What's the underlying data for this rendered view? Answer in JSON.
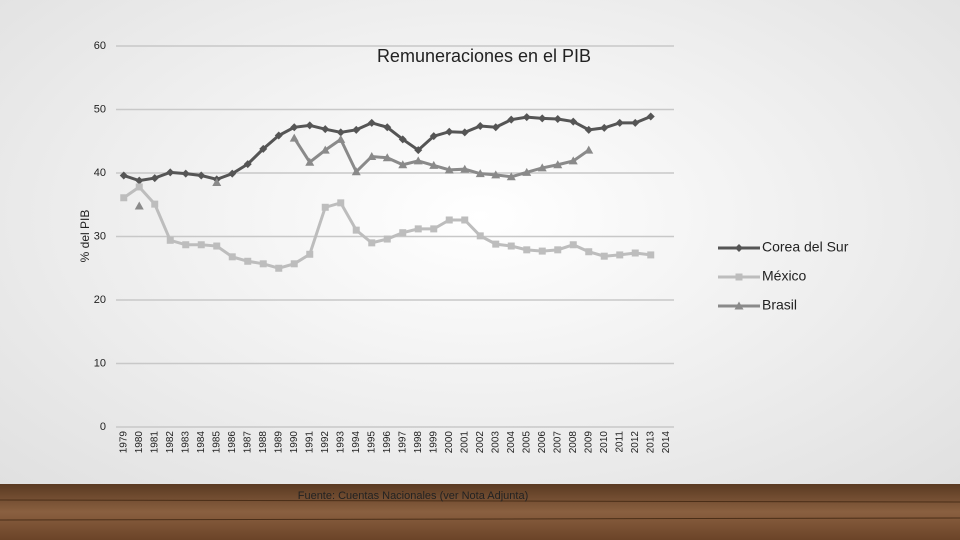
{
  "chart_data": {
    "type": "line",
    "title": "Remuneraciones en el PIB",
    "y_label": "% del PIB",
    "source": "Fuente: Cuentas Nacionales (ver Nota Adjunta)",
    "categories": [
      "1979",
      "1980",
      "1981",
      "1982",
      "1983",
      "1984",
      "1985",
      "1986",
      "1987",
      "1988",
      "1989",
      "1990",
      "1991",
      "1992",
      "1993",
      "1994",
      "1995",
      "1996",
      "1997",
      "1998",
      "1999",
      "2000",
      "2001",
      "2002",
      "2003",
      "2004",
      "2005",
      "2006",
      "2007",
      "2008",
      "2009",
      "2010",
      "2011",
      "2012",
      "2013",
      "2014"
    ],
    "series": [
      {
        "name": "Corea del Sur",
        "color": "#555555",
        "marker": "diamond",
        "values": [
          39.6,
          38.8,
          39.2,
          40.1,
          39.9,
          39.6,
          39.0,
          39.9,
          41.4,
          43.8,
          45.9,
          47.2,
          47.5,
          46.9,
          46.4,
          46.8,
          47.9,
          47.2,
          45.3,
          43.6,
          45.8,
          46.5,
          46.4,
          47.4,
          47.2,
          48.4,
          48.8,
          48.6,
          48.5,
          48.1,
          46.8,
          47.1,
          47.9,
          47.9,
          48.9,
          null
        ]
      },
      {
        "name": "México",
        "color": "#bdbdbd",
        "marker": "square",
        "values": [
          36.1,
          37.8,
          35.1,
          29.4,
          28.7,
          28.7,
          28.5,
          26.8,
          26.1,
          25.7,
          25.0,
          25.7,
          27.2,
          34.6,
          35.3,
          31.0,
          29.0,
          29.6,
          30.6,
          31.2,
          31.2,
          32.6,
          32.6,
          30.1,
          28.8,
          28.5,
          27.9,
          27.7,
          27.9,
          28.7,
          27.6,
          26.9,
          27.1,
          27.4,
          27.1,
          null
        ]
      },
      {
        "name": "Brasil",
        "color": "#8a8a8a",
        "marker": "triangle",
        "values": [
          null,
          34.8,
          null,
          null,
          null,
          null,
          38.5,
          null,
          null,
          null,
          null,
          45.5,
          41.7,
          43.6,
          45.3,
          40.2,
          42.6,
          42.4,
          41.3,
          41.9,
          41.2,
          40.5,
          40.6,
          39.9,
          39.7,
          39.4,
          40.1,
          40.8,
          41.3,
          41.9,
          43.6,
          null,
          null,
          null,
          null,
          null
        ]
      }
    ],
    "ylim": [
      0,
      60
    ],
    "yticks": [
      0,
      10,
      20,
      30,
      40,
      50,
      60
    ],
    "grid": true,
    "legend": "right"
  }
}
